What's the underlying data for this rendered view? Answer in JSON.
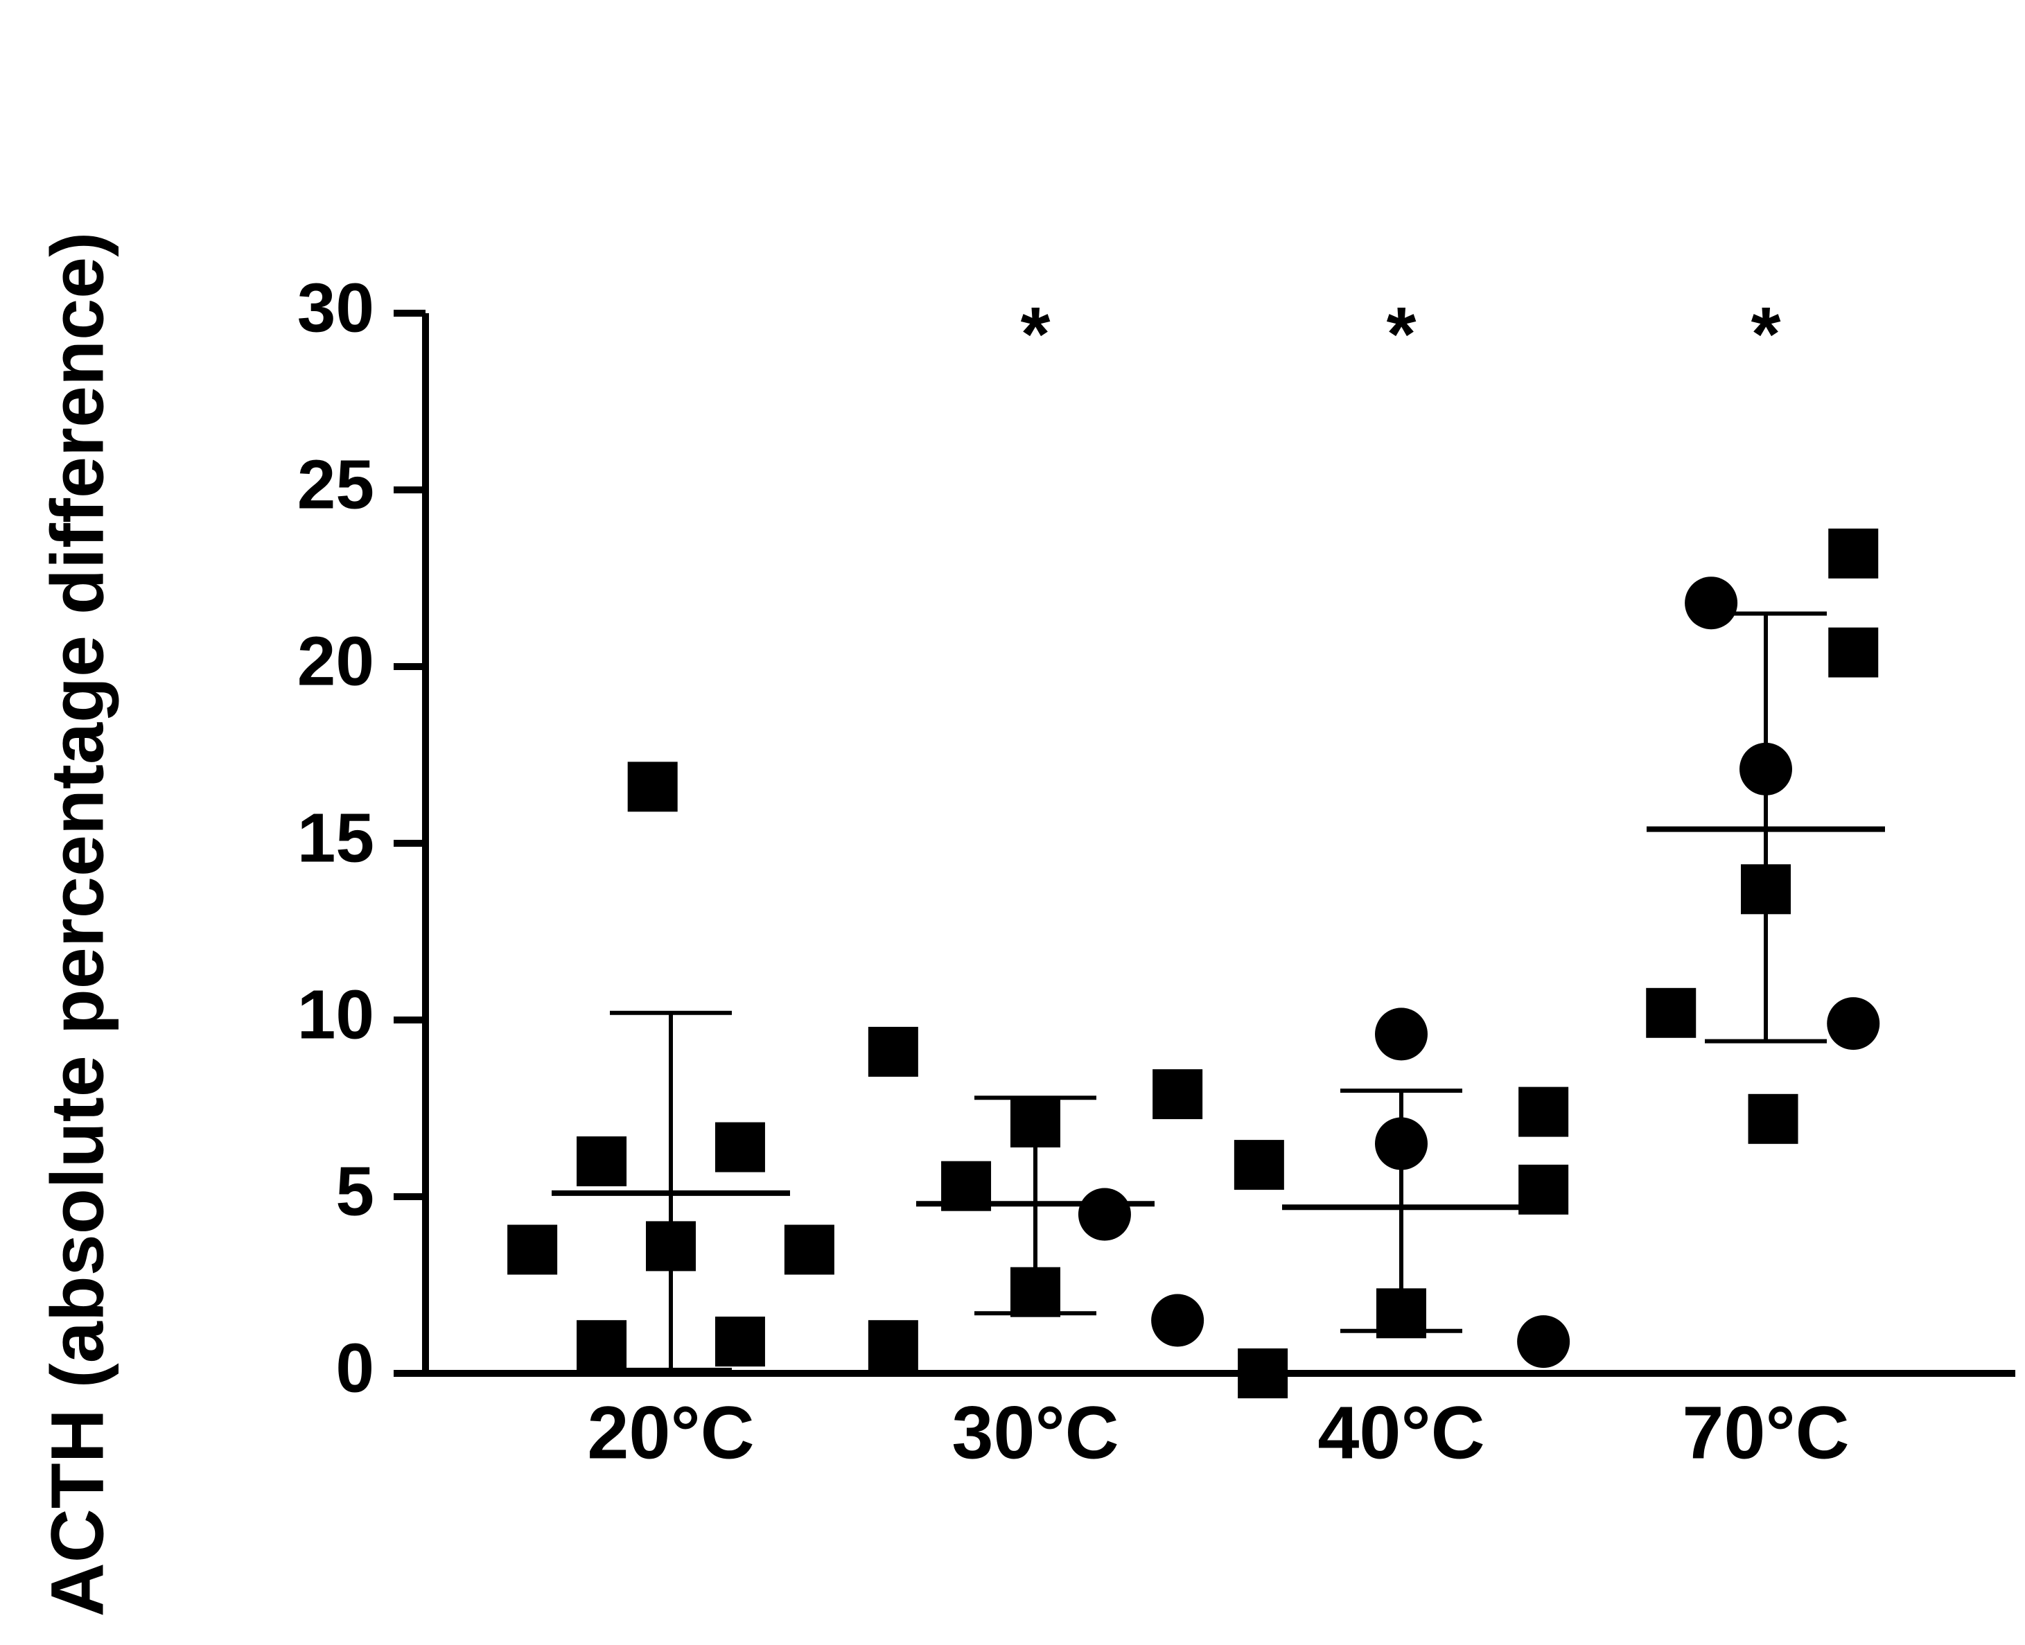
{
  "chart_data": {
    "type": "scatter",
    "title": "",
    "xlabel": "",
    "ylabel": "ACTH (absolute percentage difference)",
    "ylim": [
      0,
      30
    ],
    "yticks": [
      "0",
      "5",
      "10",
      "15",
      "20",
      "25",
      "30"
    ],
    "grid": false,
    "legend": "none",
    "categories": [
      "20°C",
      "30°C",
      "40°C",
      "70°C"
    ],
    "groups": [
      {
        "category": "20°C",
        "mean": 5.1,
        "error_bar": [
          0.1,
          10.2
        ],
        "significance": "",
        "points": [
          {
            "marker": "square",
            "offset": -0.05,
            "y": 16.6
          },
          {
            "marker": "square",
            "offset": -0.19,
            "y": 6.0
          },
          {
            "marker": "square",
            "offset": 0.19,
            "y": 6.4
          },
          {
            "marker": "square",
            "offset": -0.38,
            "y": 3.5
          },
          {
            "marker": "square",
            "offset": 0.0,
            "y": 3.6
          },
          {
            "marker": "square",
            "offset": 0.38,
            "y": 3.5
          },
          {
            "marker": "square",
            "offset": -0.19,
            "y": 0.8
          },
          {
            "marker": "square",
            "offset": 0.19,
            "y": 0.9
          }
        ]
      },
      {
        "category": "30°C",
        "mean": 4.8,
        "error_bar": [
          1.7,
          7.8
        ],
        "significance": "*",
        "points": [
          {
            "marker": "square",
            "offset": -0.39,
            "y": 9.1
          },
          {
            "marker": "square",
            "offset": 0.39,
            "y": 7.9
          },
          {
            "marker": "square",
            "offset": 0.0,
            "y": 7.1
          },
          {
            "marker": "square",
            "offset": -0.19,
            "y": 5.3
          },
          {
            "marker": "circle",
            "offset": 0.19,
            "y": 4.5
          },
          {
            "marker": "square",
            "offset": 0.0,
            "y": 2.3
          },
          {
            "marker": "circle",
            "offset": 0.39,
            "y": 1.5
          },
          {
            "marker": "square",
            "offset": -0.39,
            "y": 0.8
          }
        ]
      },
      {
        "category": "40°C",
        "mean": 4.7,
        "error_bar": [
          1.2,
          8.0
        ],
        "significance": "*",
        "points": [
          {
            "marker": "circle",
            "offset": 0.0,
            "y": 9.6
          },
          {
            "marker": "square",
            "offset": 0.39,
            "y": 7.4
          },
          {
            "marker": "circle",
            "offset": 0.0,
            "y": 6.5
          },
          {
            "marker": "square",
            "offset": -0.39,
            "y": 5.9
          },
          {
            "marker": "square",
            "offset": 0.39,
            "y": 5.2
          },
          {
            "marker": "square",
            "offset": 0.0,
            "y": 1.7
          },
          {
            "marker": "circle",
            "offset": 0.39,
            "y": 0.9
          },
          {
            "marker": "square",
            "offset": -0.38,
            "y": 0.0
          }
        ]
      },
      {
        "category": "70°C",
        "mean": 15.4,
        "error_bar": [
          9.4,
          21.5
        ],
        "significance": "*",
        "points": [
          {
            "marker": "square",
            "offset": 0.24,
            "y": 23.2
          },
          {
            "marker": "circle",
            "offset": -0.15,
            "y": 21.8
          },
          {
            "marker": "square",
            "offset": 0.24,
            "y": 20.4
          },
          {
            "marker": "circle",
            "offset": 0.0,
            "y": 17.1
          },
          {
            "marker": "square",
            "offset": 0.0,
            "y": 13.7
          },
          {
            "marker": "square",
            "offset": -0.26,
            "y": 10.2
          },
          {
            "marker": "circle",
            "offset": 0.24,
            "y": 9.9
          },
          {
            "marker": "square",
            "offset": 0.02,
            "y": 7.2
          }
        ]
      }
    ]
  }
}
